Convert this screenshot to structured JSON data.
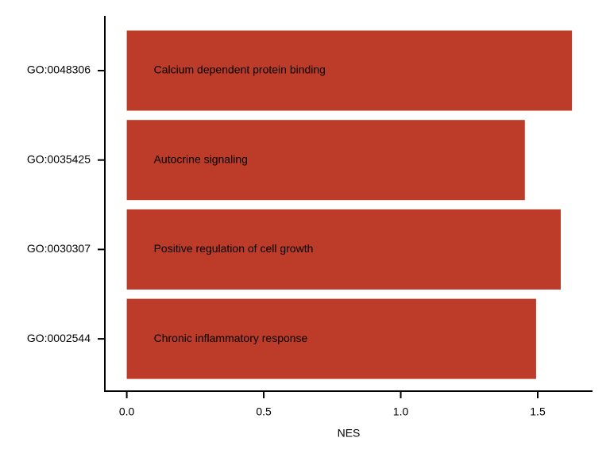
{
  "chart_data": {
    "type": "barh",
    "xlabel": "NES",
    "categories": [
      "GO:0048306",
      "GO:0035425",
      "GO:0030307",
      "GO:0002544"
    ],
    "descriptions": [
      "Calcium dependent protein binding",
      "Autocrine signaling",
      "Positive regulation of cell growth",
      "Chronic inflammatory response"
    ],
    "values": [
      1.625,
      1.453,
      1.584,
      1.494
    ],
    "color": "#bc3c29",
    "xlim": [
      -0.08,
      1.7
    ],
    "xticks": [
      {
        "value": 0,
        "label": "0.0"
      },
      {
        "value": 0.5,
        "label": "0.5"
      },
      {
        "value": 1,
        "label": "1.0"
      },
      {
        "value": 1.5,
        "label": "1.5"
      }
    ]
  }
}
